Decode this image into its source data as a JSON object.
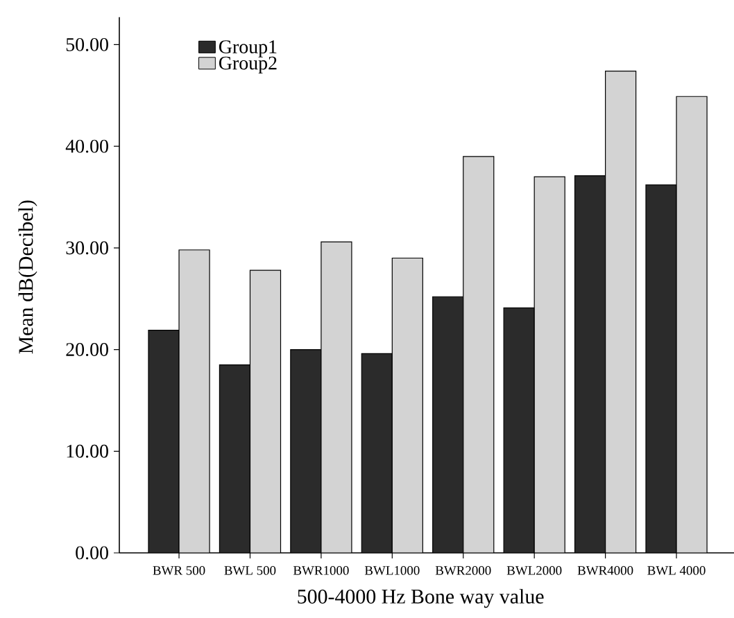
{
  "chart_data": {
    "type": "bar",
    "xlabel": "500-4000 Hz Bone way value",
    "ylabel": "Mean dB(Decibel)",
    "categories": [
      "BWR 500",
      "BWL 500",
      "BWR1000",
      "BWL1000",
      "BWR2000",
      "BWL2000",
      "BWR4000",
      "BWL 4000"
    ],
    "series": [
      {
        "name": "Group1",
        "color": "#2b2b2b",
        "values": [
          21.9,
          18.5,
          20.0,
          19.6,
          25.2,
          24.1,
          37.1,
          36.2
        ]
      },
      {
        "name": "Group2",
        "color": "#d3d3d3",
        "values": [
          29.8,
          27.8,
          30.6,
          29.0,
          39.0,
          37.0,
          47.4,
          44.9
        ]
      }
    ],
    "ylim": [
      0,
      52.7
    ],
    "yticks": [
      {
        "value": 0,
        "label": "0.00"
      },
      {
        "value": 10,
        "label": "10.00"
      },
      {
        "value": 20,
        "label": "20.00"
      },
      {
        "value": 30,
        "label": "30.00"
      },
      {
        "value": 40,
        "label": "40.00"
      },
      {
        "value": 50,
        "label": "50.00"
      }
    ],
    "legend": "top left",
    "grid": false
  }
}
